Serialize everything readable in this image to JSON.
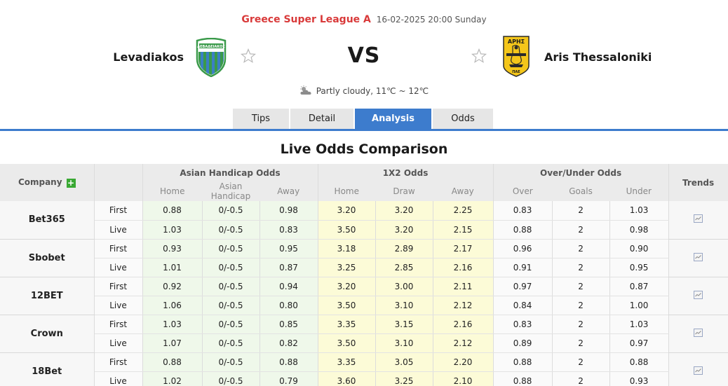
{
  "match": {
    "league": "Greece Super League A",
    "datetime": "16-02-2025 20:00 Sunday",
    "home_team": "Levadiakos",
    "away_team": "Aris Thessaloniki",
    "vs_label": "VS",
    "home_crest_text": "ΛΕΒΑΔΕΙΑΚΟΣ",
    "away_crest_top": "ΑΡΗΣ",
    "away_crest_bottom": "ΠΑΕ",
    "weather": "Partly cloudy, 11℃ ~ 12℃",
    "icons": {
      "home_favorite": "star-outline-icon",
      "away_favorite": "star-outline-icon",
      "weather": "partly-cloudy-icon"
    }
  },
  "tabs": [
    {
      "label": "Tips",
      "active": false
    },
    {
      "label": "Detail",
      "active": false
    },
    {
      "label": "Analysis",
      "active": true
    },
    {
      "label": "Odds",
      "active": false
    }
  ],
  "section_title": "Live Odds Comparison",
  "table": {
    "headers": {
      "company": "Company",
      "asian_handicap": "Asian Handicap Odds",
      "x12": "1X2 Odds",
      "over_under": "Over/Under Odds",
      "trends": "Trends"
    },
    "subheaders": {
      "ah": [
        "Home",
        "Asian Handicap",
        "Away"
      ],
      "x12": [
        "Home",
        "Draw",
        "Away"
      ],
      "ou": [
        "Over",
        "Goals",
        "Under"
      ]
    },
    "companies": [
      {
        "name": "Bet365",
        "first": {
          "label": "First",
          "ah": [
            "0.88",
            "0/-0.5",
            "0.98"
          ],
          "x12": [
            "3.20",
            "3.20",
            "2.25"
          ],
          "ou": [
            "0.83",
            "2",
            "1.03"
          ]
        },
        "live": {
          "label": "Live",
          "ah": [
            "1.03",
            "0/-0.5",
            "0.83"
          ],
          "x12": [
            "3.50",
            "3.20",
            "2.15"
          ],
          "ou": [
            "0.88",
            "2",
            "0.98"
          ]
        }
      },
      {
        "name": "Sbobet",
        "first": {
          "label": "First",
          "ah": [
            "0.93",
            "0/-0.5",
            "0.95"
          ],
          "x12": [
            "3.18",
            "2.89",
            "2.17"
          ],
          "ou": [
            "0.96",
            "2",
            "0.90"
          ]
        },
        "live": {
          "label": "Live",
          "ah": [
            "1.01",
            "0/-0.5",
            "0.87"
          ],
          "x12": [
            "3.25",
            "2.85",
            "2.16"
          ],
          "ou": [
            "0.91",
            "2",
            "0.95"
          ]
        }
      },
      {
        "name": "12BET",
        "first": {
          "label": "First",
          "ah": [
            "0.92",
            "0/-0.5",
            "0.94"
          ],
          "x12": [
            "3.20",
            "3.00",
            "2.11"
          ],
          "ou": [
            "0.97",
            "2",
            "0.87"
          ]
        },
        "live": {
          "label": "Live",
          "ah": [
            "1.06",
            "0/-0.5",
            "0.80"
          ],
          "x12": [
            "3.50",
            "3.10",
            "2.12"
          ],
          "ou": [
            "0.84",
            "2",
            "1.00"
          ]
        }
      },
      {
        "name": "Crown",
        "first": {
          "label": "First",
          "ah": [
            "1.03",
            "0/-0.5",
            "0.85"
          ],
          "x12": [
            "3.35",
            "3.15",
            "2.16"
          ],
          "ou": [
            "0.83",
            "2",
            "1.03"
          ]
        },
        "live": {
          "label": "Live",
          "ah": [
            "1.07",
            "0/-0.5",
            "0.82"
          ],
          "x12": [
            "3.50",
            "3.10",
            "2.12"
          ],
          "ou": [
            "0.89",
            "2",
            "0.97"
          ]
        }
      },
      {
        "name": "18Bet",
        "first": {
          "label": "First",
          "ah": [
            "0.88",
            "0/-0.5",
            "0.88"
          ],
          "x12": [
            "3.35",
            "3.05",
            "2.20"
          ],
          "ou": [
            "0.88",
            "2",
            "0.88"
          ]
        },
        "live": {
          "label": "Live",
          "ah": [
            "1.02",
            "0/-0.5",
            "0.79"
          ],
          "x12": [
            "3.60",
            "3.25",
            "2.10"
          ],
          "ou": [
            "0.88",
            "2",
            "0.93"
          ]
        }
      }
    ]
  },
  "colors": {
    "league_red": "#d93a3a",
    "tab_active_blue": "#3d7ccd",
    "tab_inactive": "#e6e6e6",
    "header_gray": "#ebebeb",
    "ah_bg_green": "#eff8ea",
    "x12_bg_yellow": "#fcfbd7",
    "plus_green": "#39a833"
  }
}
